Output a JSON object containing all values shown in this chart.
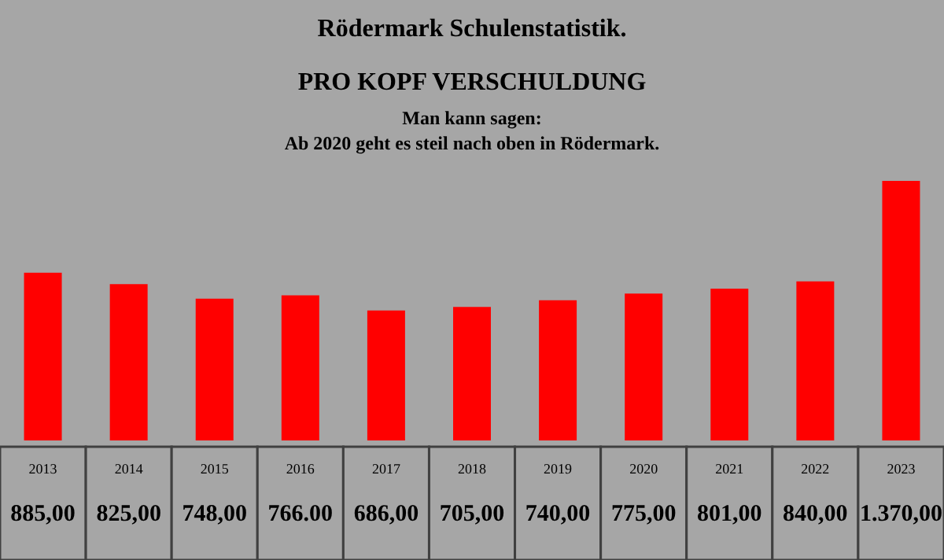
{
  "chart_data": {
    "type": "bar",
    "title": "Rödermark Schulenstatistik.",
    "subtitle": "PRO KOPF VERSCHULDUNG",
    "annotations": [
      "Man kann sagen:",
      "Ab 2020 geht es steil nach oben in Rödermark."
    ],
    "categories": [
      "2013",
      "2014",
      "2015",
      "2016",
      "2017",
      "2018",
      "2019",
      "2020",
      "2021",
      "2022",
      "2023"
    ],
    "values": [
      885,
      825,
      748,
      766,
      686,
      705,
      740,
      775,
      801,
      840,
      1370
    ],
    "value_labels": [
      "885,00",
      "825,00",
      "748,00",
      "766.00",
      "686,00",
      "705,00",
      "740,00",
      "775,00",
      "801,00",
      "840,00",
      "1.370,00"
    ],
    "color": "#ff0000"
  }
}
